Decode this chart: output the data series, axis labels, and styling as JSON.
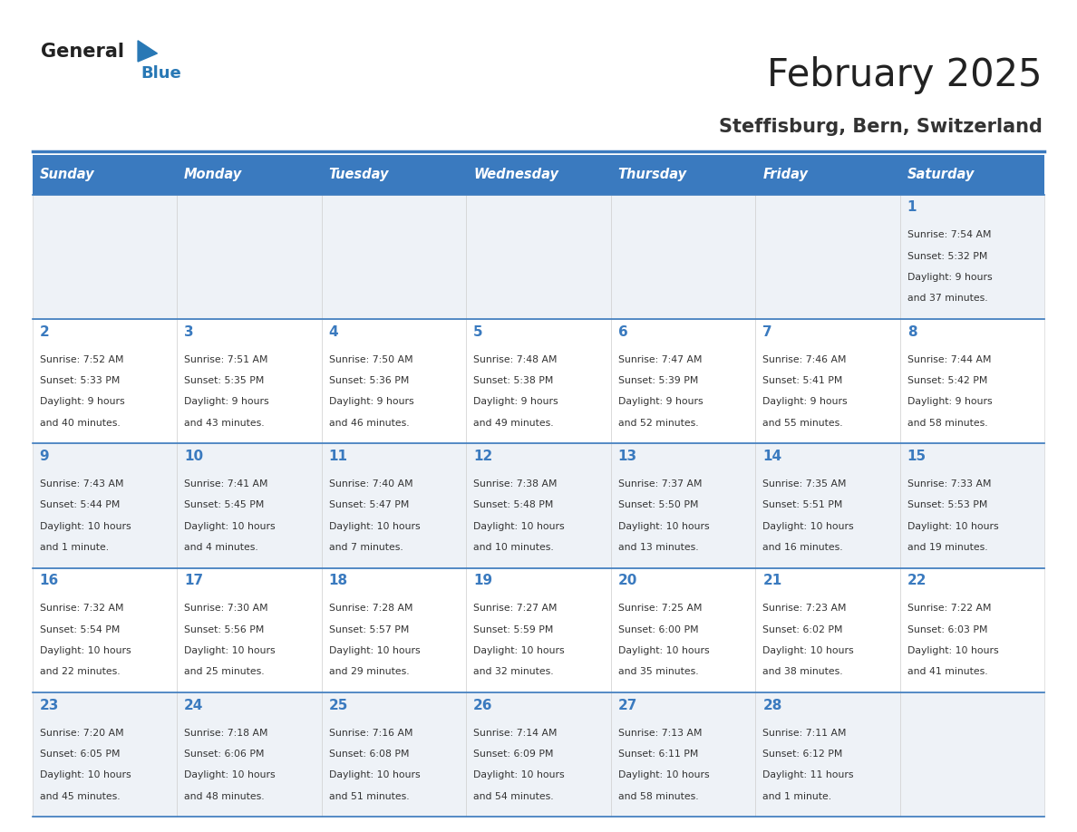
{
  "title": "February 2025",
  "subtitle": "Steffisburg, Bern, Switzerland",
  "header_bg": "#3a7abf",
  "header_text_color": "#ffffff",
  "cell_bg_odd": "#eef2f7",
  "cell_bg_even": "#ffffff",
  "border_color": "#3a7abf",
  "day_headers": [
    "Sunday",
    "Monday",
    "Tuesday",
    "Wednesday",
    "Thursday",
    "Friday",
    "Saturday"
  ],
  "title_color": "#222222",
  "subtitle_color": "#333333",
  "day_num_color": "#3a7abf",
  "cell_text_color": "#333333",
  "logo_general_color": "#222222",
  "logo_blue_color": "#2878b5",
  "logo_triangle_color": "#2878b5",
  "calendar": [
    [
      null,
      null,
      null,
      null,
      null,
      null,
      {
        "day": "1",
        "sunrise": "7:54 AM",
        "sunset": "5:32 PM",
        "daylight1": "9 hours",
        "daylight2": "and 37 minutes."
      }
    ],
    [
      {
        "day": "2",
        "sunrise": "7:52 AM",
        "sunset": "5:33 PM",
        "daylight1": "9 hours",
        "daylight2": "and 40 minutes."
      },
      {
        "day": "3",
        "sunrise": "7:51 AM",
        "sunset": "5:35 PM",
        "daylight1": "9 hours",
        "daylight2": "and 43 minutes."
      },
      {
        "day": "4",
        "sunrise": "7:50 AM",
        "sunset": "5:36 PM",
        "daylight1": "9 hours",
        "daylight2": "and 46 minutes."
      },
      {
        "day": "5",
        "sunrise": "7:48 AM",
        "sunset": "5:38 PM",
        "daylight1": "9 hours",
        "daylight2": "and 49 minutes."
      },
      {
        "day": "6",
        "sunrise": "7:47 AM",
        "sunset": "5:39 PM",
        "daylight1": "9 hours",
        "daylight2": "and 52 minutes."
      },
      {
        "day": "7",
        "sunrise": "7:46 AM",
        "sunset": "5:41 PM",
        "daylight1": "9 hours",
        "daylight2": "and 55 minutes."
      },
      {
        "day": "8",
        "sunrise": "7:44 AM",
        "sunset": "5:42 PM",
        "daylight1": "9 hours",
        "daylight2": "and 58 minutes."
      }
    ],
    [
      {
        "day": "9",
        "sunrise": "7:43 AM",
        "sunset": "5:44 PM",
        "daylight1": "10 hours",
        "daylight2": "and 1 minute."
      },
      {
        "day": "10",
        "sunrise": "7:41 AM",
        "sunset": "5:45 PM",
        "daylight1": "10 hours",
        "daylight2": "and 4 minutes."
      },
      {
        "day": "11",
        "sunrise": "7:40 AM",
        "sunset": "5:47 PM",
        "daylight1": "10 hours",
        "daylight2": "and 7 minutes."
      },
      {
        "day": "12",
        "sunrise": "7:38 AM",
        "sunset": "5:48 PM",
        "daylight1": "10 hours",
        "daylight2": "and 10 minutes."
      },
      {
        "day": "13",
        "sunrise": "7:37 AM",
        "sunset": "5:50 PM",
        "daylight1": "10 hours",
        "daylight2": "and 13 minutes."
      },
      {
        "day": "14",
        "sunrise": "7:35 AM",
        "sunset": "5:51 PM",
        "daylight1": "10 hours",
        "daylight2": "and 16 minutes."
      },
      {
        "day": "15",
        "sunrise": "7:33 AM",
        "sunset": "5:53 PM",
        "daylight1": "10 hours",
        "daylight2": "and 19 minutes."
      }
    ],
    [
      {
        "day": "16",
        "sunrise": "7:32 AM",
        "sunset": "5:54 PM",
        "daylight1": "10 hours",
        "daylight2": "and 22 minutes."
      },
      {
        "day": "17",
        "sunrise": "7:30 AM",
        "sunset": "5:56 PM",
        "daylight1": "10 hours",
        "daylight2": "and 25 minutes."
      },
      {
        "day": "18",
        "sunrise": "7:28 AM",
        "sunset": "5:57 PM",
        "daylight1": "10 hours",
        "daylight2": "and 29 minutes."
      },
      {
        "day": "19",
        "sunrise": "7:27 AM",
        "sunset": "5:59 PM",
        "daylight1": "10 hours",
        "daylight2": "and 32 minutes."
      },
      {
        "day": "20",
        "sunrise": "7:25 AM",
        "sunset": "6:00 PM",
        "daylight1": "10 hours",
        "daylight2": "and 35 minutes."
      },
      {
        "day": "21",
        "sunrise": "7:23 AM",
        "sunset": "6:02 PM",
        "daylight1": "10 hours",
        "daylight2": "and 38 minutes."
      },
      {
        "day": "22",
        "sunrise": "7:22 AM",
        "sunset": "6:03 PM",
        "daylight1": "10 hours",
        "daylight2": "and 41 minutes."
      }
    ],
    [
      {
        "day": "23",
        "sunrise": "7:20 AM",
        "sunset": "6:05 PM",
        "daylight1": "10 hours",
        "daylight2": "and 45 minutes."
      },
      {
        "day": "24",
        "sunrise": "7:18 AM",
        "sunset": "6:06 PM",
        "daylight1": "10 hours",
        "daylight2": "and 48 minutes."
      },
      {
        "day": "25",
        "sunrise": "7:16 AM",
        "sunset": "6:08 PM",
        "daylight1": "10 hours",
        "daylight2": "and 51 minutes."
      },
      {
        "day": "26",
        "sunrise": "7:14 AM",
        "sunset": "6:09 PM",
        "daylight1": "10 hours",
        "daylight2": "and 54 minutes."
      },
      {
        "day": "27",
        "sunrise": "7:13 AM",
        "sunset": "6:11 PM",
        "daylight1": "10 hours",
        "daylight2": "and 58 minutes."
      },
      {
        "day": "28",
        "sunrise": "7:11 AM",
        "sunset": "6:12 PM",
        "daylight1": "11 hours",
        "daylight2": "and 1 minute."
      },
      null
    ]
  ]
}
